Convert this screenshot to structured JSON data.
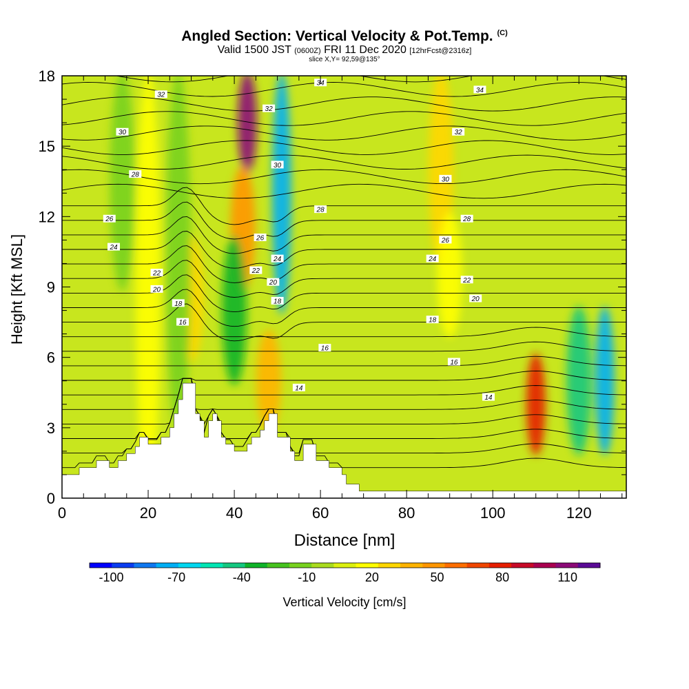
{
  "header": {
    "title": "Angled Section: Vertical Velocity & Pot.Temp.",
    "copyright": "(C)",
    "valid_prefix": "Valid 1500 JST",
    "valid_utc": "(0600Z)",
    "valid_date": "FRI 11 Dec 2020",
    "forecast": "[12hrFcst@2316z]",
    "slice": "slice X,Y= 92,59@135°"
  },
  "chart_data": {
    "type": "heatmap",
    "title": "Angled Section: Vertical Velocity & Pot.Temp.",
    "xlabel": "Distance [nm]",
    "ylabel": "Height [Kft MSL]",
    "xlim": [
      0,
      131
    ],
    "ylim": [
      0,
      18
    ],
    "x_ticks": [
      0,
      20,
      40,
      60,
      80,
      100,
      120
    ],
    "y_ticks": [
      0,
      3,
      6,
      9,
      12,
      15,
      18
    ],
    "colorbar": {
      "label": "Vertical Velocity [cm/s]",
      "ticks": [
        -100,
        -70,
        -40,
        -10,
        20,
        50,
        80,
        110
      ],
      "range": [
        -110,
        125
      ],
      "colors": [
        "#0000ff",
        "#0a3cf0",
        "#0f78f0",
        "#00aff5",
        "#00d7f0",
        "#00e6b4",
        "#14c880",
        "#0fb428",
        "#46c31e",
        "#78d21e",
        "#aadc1e",
        "#dcf00f",
        "#ffff00",
        "#ffd700",
        "#ffb400",
        "#ff9600",
        "#ff6e00",
        "#f04600",
        "#e61e00",
        "#c80a28",
        "#aa0050",
        "#8c0a78",
        "#5a0a96"
      ]
    },
    "velocity_features": [
      {
        "x": 43,
        "ymin": 14,
        "ymax": 18,
        "value": 110
      },
      {
        "x": 42,
        "ymin": 9,
        "ymax": 14,
        "value": 50
      },
      {
        "x": 51,
        "ymin": 8,
        "ymax": 18,
        "value": -70
      },
      {
        "x": 30,
        "ymin": 6,
        "ymax": 11,
        "value": 30
      },
      {
        "x": 20,
        "ymin": 0,
        "ymax": 18,
        "value": 20
      },
      {
        "x": 40,
        "ymin": 5,
        "ymax": 11,
        "value": -30
      },
      {
        "x": 48,
        "ymin": 3,
        "ymax": 7,
        "value": 35
      },
      {
        "x": 88,
        "ymin": 10,
        "ymax": 18,
        "value": 25
      },
      {
        "x": 110,
        "ymin": 2,
        "ymax": 6,
        "value": 80
      },
      {
        "x": 120,
        "ymin": 2,
        "ymax": 8,
        "value": -40
      },
      {
        "x": 126,
        "ymin": 2,
        "ymax": 8,
        "value": -70
      },
      {
        "x": 14,
        "ymin": 9,
        "ymax": 18,
        "value": -15
      },
      {
        "x": 27,
        "ymin": 3,
        "ymax": 18,
        "value": -15
      },
      {
        "x": 90,
        "ymin": 7,
        "ymax": 12,
        "value": 15
      }
    ],
    "theta_labels": [
      {
        "text": "34",
        "x": 60,
        "y": 17.7
      },
      {
        "text": "34",
        "x": 97,
        "y": 17.4
      },
      {
        "text": "32",
        "x": 23,
        "y": 17.2
      },
      {
        "text": "32",
        "x": 48,
        "y": 16.6
      },
      {
        "text": "32",
        "x": 92,
        "y": 15.6
      },
      {
        "text": "30",
        "x": 14,
        "y": 15.6
      },
      {
        "text": "30",
        "x": 50,
        "y": 14.2
      },
      {
        "text": "30",
        "x": 89,
        "y": 13.6
      },
      {
        "text": "28",
        "x": 17,
        "y": 13.8
      },
      {
        "text": "28",
        "x": 60,
        "y": 12.3
      },
      {
        "text": "28",
        "x": 94,
        "y": 11.9
      },
      {
        "text": "26",
        "x": 11,
        "y": 11.9
      },
      {
        "text": "26",
        "x": 46,
        "y": 11.1
      },
      {
        "text": "26",
        "x": 89,
        "y": 11.0
      },
      {
        "text": "24",
        "x": 12,
        "y": 10.7
      },
      {
        "text": "24",
        "x": 50,
        "y": 10.2
      },
      {
        "text": "24",
        "x": 86,
        "y": 10.2
      },
      {
        "text": "22",
        "x": 22,
        "y": 9.6
      },
      {
        "text": "22",
        "x": 45,
        "y": 9.7
      },
      {
        "text": "22",
        "x": 94,
        "y": 9.3
      },
      {
        "text": "20",
        "x": 22,
        "y": 8.9
      },
      {
        "text": "20",
        "x": 49,
        "y": 9.2
      },
      {
        "text": "20",
        "x": 96,
        "y": 8.5
      },
      {
        "text": "18",
        "x": 27,
        "y": 8.3
      },
      {
        "text": "18",
        "x": 50,
        "y": 8.4
      },
      {
        "text": "18",
        "x": 86,
        "y": 7.6
      },
      {
        "text": "16",
        "x": 28,
        "y": 7.5
      },
      {
        "text": "16",
        "x": 61,
        "y": 6.4
      },
      {
        "text": "16",
        "x": 91,
        "y": 5.8
      },
      {
        "text": "14",
        "x": 55,
        "y": 4.7
      },
      {
        "text": "14",
        "x": 99,
        "y": 4.3
      }
    ],
    "terrain_profile": [
      [
        0,
        1.0
      ],
      [
        4,
        1.0
      ],
      [
        4,
        1.3
      ],
      [
        8,
        1.3
      ],
      [
        8,
        1.6
      ],
      [
        11,
        1.6
      ],
      [
        11,
        1.3
      ],
      [
        13,
        1.3
      ],
      [
        13,
        1.6
      ],
      [
        15,
        1.6
      ],
      [
        15,
        1.9
      ],
      [
        17,
        1.9
      ],
      [
        17,
        2.2
      ],
      [
        18,
        2.2
      ],
      [
        18,
        2.6
      ],
      [
        20,
        2.6
      ],
      [
        20,
        2.3
      ],
      [
        23,
        2.3
      ],
      [
        23,
        2.6
      ],
      [
        25,
        2.6
      ],
      [
        25,
        3.0
      ],
      [
        26,
        3.0
      ],
      [
        26,
        3.6
      ],
      [
        27,
        3.6
      ],
      [
        27,
        4.2
      ],
      [
        28,
        4.2
      ],
      [
        28,
        4.9
      ],
      [
        31,
        4.9
      ],
      [
        31,
        3.6
      ],
      [
        32,
        3.6
      ],
      [
        32,
        3.3
      ],
      [
        33,
        3.3
      ],
      [
        33,
        2.6
      ],
      [
        34,
        2.6
      ],
      [
        34,
        3.3
      ],
      [
        35,
        3.3
      ],
      [
        35,
        3.6
      ],
      [
        36,
        3.6
      ],
      [
        36,
        3.3
      ],
      [
        37,
        3.3
      ],
      [
        37,
        2.6
      ],
      [
        38,
        2.6
      ],
      [
        38,
        2.3
      ],
      [
        40,
        2.3
      ],
      [
        40,
        2.0
      ],
      [
        43,
        2.0
      ],
      [
        43,
        2.3
      ],
      [
        44,
        2.3
      ],
      [
        44,
        2.6
      ],
      [
        46,
        2.6
      ],
      [
        46,
        2.9
      ],
      [
        47,
        2.9
      ],
      [
        47,
        3.3
      ],
      [
        48,
        3.3
      ],
      [
        48,
        3.6
      ],
      [
        50,
        3.6
      ],
      [
        50,
        2.6
      ],
      [
        53,
        2.6
      ],
      [
        53,
        2.0
      ],
      [
        54,
        2.0
      ],
      [
        54,
        1.6
      ],
      [
        56,
        1.6
      ],
      [
        56,
        2.3
      ],
      [
        59,
        2.3
      ],
      [
        59,
        1.6
      ],
      [
        62,
        1.6
      ],
      [
        62,
        1.3
      ],
      [
        65,
        1.3
      ],
      [
        65,
        1.0
      ],
      [
        66,
        1.0
      ],
      [
        66,
        0.6
      ],
      [
        69,
        0.6
      ],
      [
        69,
        0.3
      ],
      [
        131,
        0.3
      ]
    ]
  }
}
